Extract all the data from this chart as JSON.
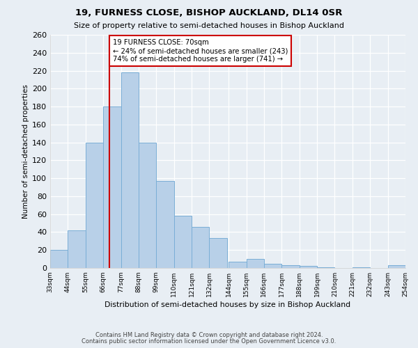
{
  "title1": "19, FURNESS CLOSE, BISHOP AUCKLAND, DL14 0SR",
  "title2": "Size of property relative to semi-detached houses in Bishop Auckland",
  "xlabel": "Distribution of semi-detached houses by size in Bishop Auckland",
  "ylabel": "Number of semi-detached properties",
  "property_size": 70,
  "property_label": "19 FURNESS CLOSE: 70sqm",
  "pct_smaller": 24,
  "count_smaller": 243,
  "pct_larger": 74,
  "count_larger": 741,
  "bar_color": "#b8d0e8",
  "bar_edge_color": "#7aaed6",
  "vline_color": "#cc0000",
  "annotation_edge_color": "#cc0000",
  "bin_left_edges": [
    33,
    44,
    55,
    66,
    77,
    88,
    99,
    110,
    121,
    132,
    144,
    155,
    166,
    177,
    188,
    199,
    210,
    221,
    232,
    243
  ],
  "bin_width": 11,
  "categories": [
    "33sqm",
    "44sqm",
    "55sqm",
    "66sqm",
    "77sqm",
    "88sqm",
    "99sqm",
    "110sqm",
    "121sqm",
    "132sqm",
    "144sqm",
    "155sqm",
    "166sqm",
    "177sqm",
    "188sqm",
    "199sqm",
    "210sqm",
    "221sqm",
    "232sqm",
    "243sqm",
    "254sqm"
  ],
  "tick_positions": [
    33,
    44,
    55,
    66,
    77,
    88,
    99,
    110,
    121,
    132,
    144,
    155,
    166,
    177,
    188,
    199,
    210,
    221,
    232,
    243,
    254
  ],
  "values": [
    20,
    42,
    140,
    180,
    218,
    140,
    97,
    58,
    46,
    33,
    7,
    10,
    5,
    3,
    2,
    1,
    0,
    1,
    0,
    3
  ],
  "ylim": [
    0,
    260
  ],
  "yticks": [
    0,
    20,
    40,
    60,
    80,
    100,
    120,
    140,
    160,
    180,
    200,
    220,
    240,
    260
  ],
  "footnote1": "Contains HM Land Registry data © Crown copyright and database right 2024.",
  "footnote2": "Contains public sector information licensed under the Open Government Licence v3.0.",
  "background_color": "#e8eef4",
  "fig_background_color": "#e8eef4"
}
